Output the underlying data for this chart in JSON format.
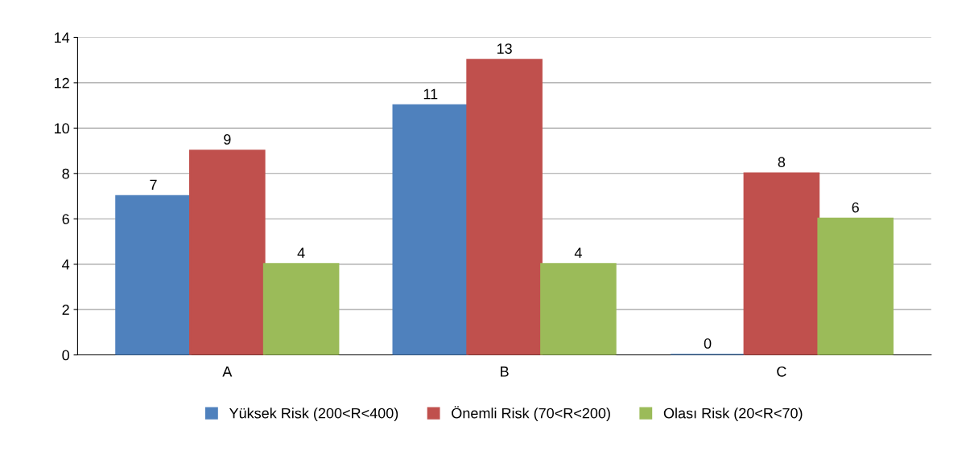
{
  "chart_data": {
    "type": "bar",
    "categories": [
      "A",
      "B",
      "C"
    ],
    "series": [
      {
        "name": "Yüksek Risk (200<R<400)",
        "color": "#4f81bd",
        "values": [
          7,
          11,
          0
        ]
      },
      {
        "name": "Önemli Risk (70<R<200)",
        "color": "#c0504d",
        "values": [
          9,
          13,
          8
        ]
      },
      {
        "name": "Olası Risk (20<R<70)",
        "color": "#9bbb59",
        "values": [
          4,
          4,
          6
        ]
      }
    ],
    "ylim": [
      0,
      14
    ],
    "yticks": [
      0,
      2,
      4,
      6,
      8,
      10,
      12,
      14
    ],
    "grid": "y",
    "legend": "bottom",
    "data_labels": true
  }
}
